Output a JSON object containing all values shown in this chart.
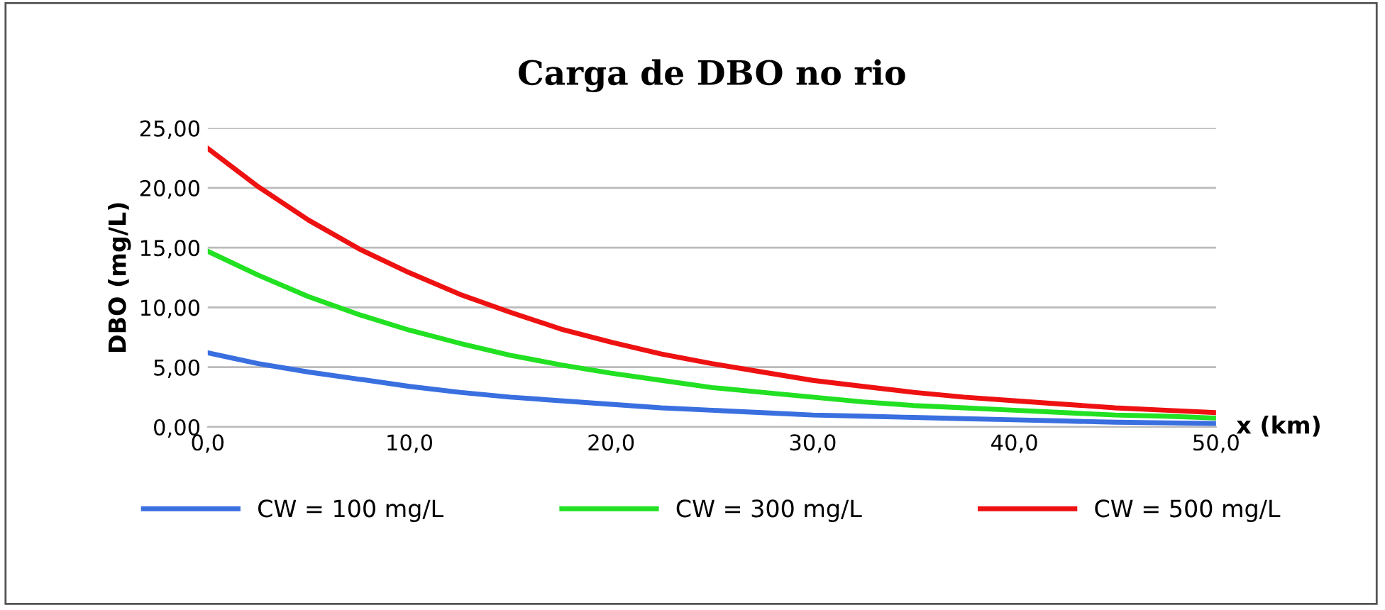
{
  "chart_data": {
    "type": "line",
    "title": "Carga de DBO no rio",
    "xlabel": "x (km)",
    "ylabel": "DBO (mg/L)",
    "x": [
      0,
      2.5,
      5,
      7.5,
      10,
      12.5,
      15,
      17.5,
      20,
      22.5,
      25,
      27.5,
      30,
      32.5,
      35,
      37.5,
      40,
      42.5,
      45,
      47.5,
      50
    ],
    "series": [
      {
        "name": "CW = 100 mg/L",
        "color": "#3a6fe0",
        "values": [
          6.2,
          5.3,
          4.6,
          4.0,
          3.4,
          2.9,
          2.5,
          2.2,
          1.9,
          1.6,
          1.4,
          1.2,
          1.0,
          0.9,
          0.8,
          0.7,
          0.6,
          0.5,
          0.4,
          0.35,
          0.3
        ]
      },
      {
        "name": "CW = 300 mg/L",
        "color": "#22e022",
        "values": [
          14.7,
          12.7,
          10.9,
          9.4,
          8.1,
          7.0,
          6.0,
          5.2,
          4.5,
          3.9,
          3.3,
          2.9,
          2.5,
          2.1,
          1.8,
          1.6,
          1.4,
          1.2,
          1.0,
          0.9,
          0.75
        ]
      },
      {
        "name": "CW = 500 mg/L",
        "color": "#ee1111",
        "values": [
          23.3,
          20.1,
          17.3,
          14.9,
          12.9,
          11.1,
          9.6,
          8.2,
          7.1,
          6.1,
          5.3,
          4.6,
          3.9,
          3.4,
          2.9,
          2.5,
          2.2,
          1.9,
          1.6,
          1.4,
          1.2
        ]
      }
    ],
    "xlim": [
      0,
      50
    ],
    "xticks": [
      {
        "value": 0,
        "label": "0,0"
      },
      {
        "value": 10,
        "label": "10,0"
      },
      {
        "value": 20,
        "label": "20,0"
      },
      {
        "value": 30,
        "label": "30,0"
      },
      {
        "value": 40,
        "label": "40,0"
      },
      {
        "value": 50,
        "label": "50,0"
      }
    ],
    "ylim": [
      0,
      25
    ],
    "yticks": [
      {
        "value": 0,
        "label": "0,00"
      },
      {
        "value": 5,
        "label": "5,00"
      },
      {
        "value": 10,
        "label": "10,00"
      },
      {
        "value": 15,
        "label": "15,00"
      },
      {
        "value": 20,
        "label": "20,00"
      },
      {
        "value": 25,
        "label": "25,00"
      }
    ],
    "grid": "y",
    "legend": "bottom",
    "marker": "none",
    "line_style": "solid"
  }
}
